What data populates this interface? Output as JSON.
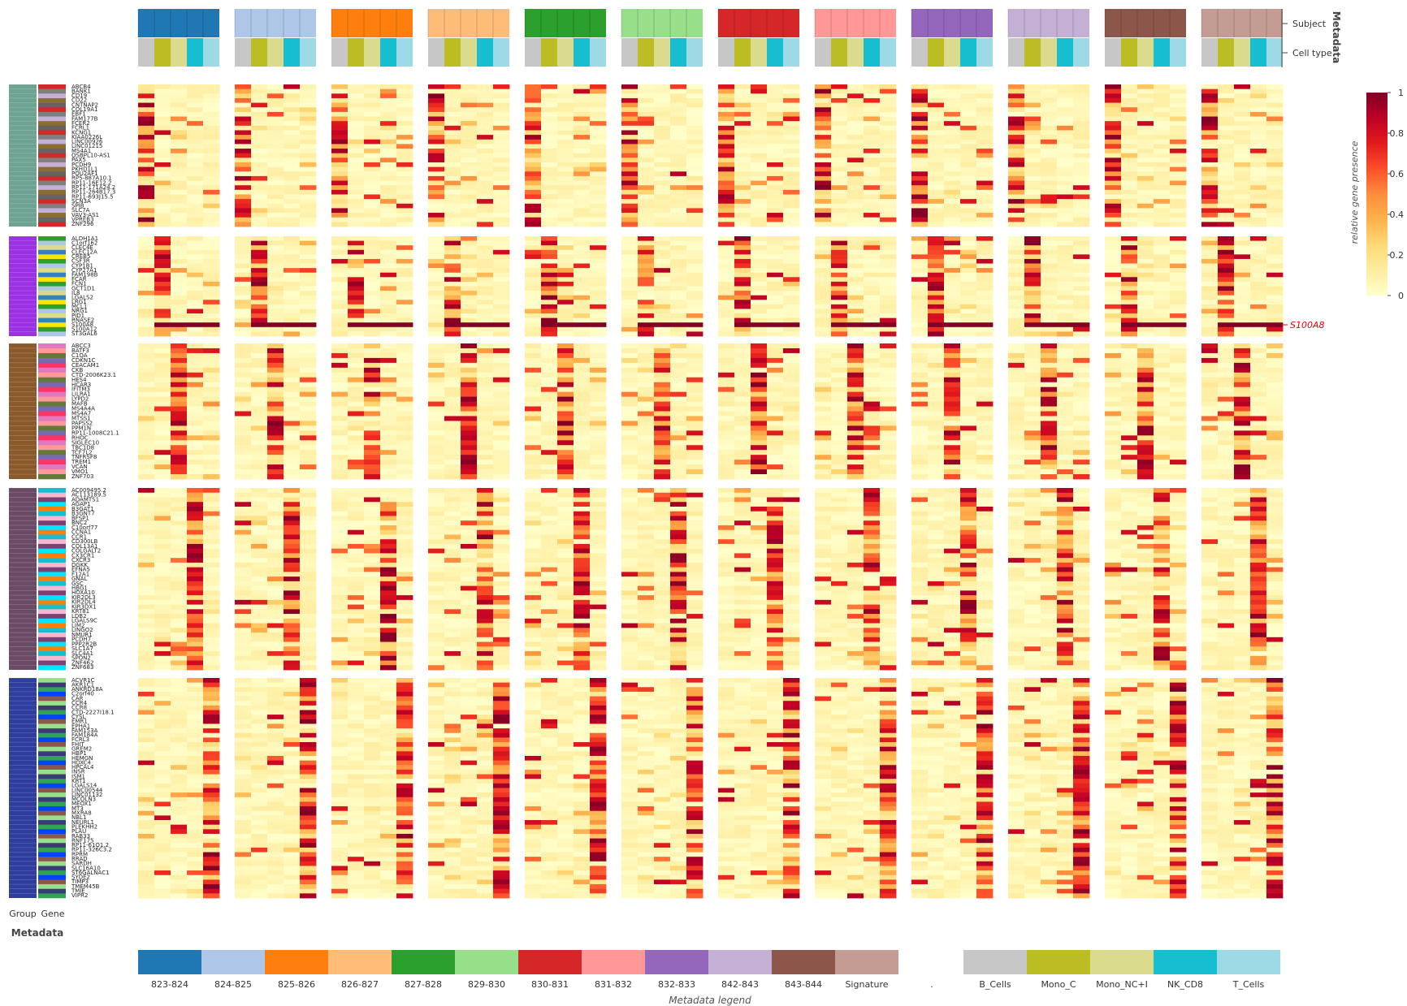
{
  "chart_data": {
    "type": "heatmap",
    "title": "",
    "colorbar": {
      "label": "relative gene presence",
      "ticks": [
        "0",
        "0.2",
        "0.4",
        "0.6",
        "0.8",
        "1"
      ],
      "range": [
        0,
        1
      ],
      "colors": [
        "#ffffcc",
        "#ffeda0",
        "#fed976",
        "#feb24c",
        "#fd8d3c",
        "#fc4e2a",
        "#e31a1c",
        "#bd0026",
        "#800026"
      ]
    },
    "metadata_title_top": "Metadata",
    "metadata_title_left": "Metadata",
    "column_track_labels": [
      "Subject",
      "Cell type"
    ],
    "row_track_labels": [
      "Group",
      "Gene"
    ],
    "legend_title": "Metadata legend",
    "subjects": [
      {
        "name": "823-824",
        "color": "#1f77b4"
      },
      {
        "name": "824-825",
        "color": "#aec7e8"
      },
      {
        "name": "825-826",
        "color": "#ff7f0e"
      },
      {
        "name": "826-827",
        "color": "#ffbb78"
      },
      {
        "name": "827-828",
        "color": "#2ca02c"
      },
      {
        "name": "829-830",
        "color": "#98df8a"
      },
      {
        "name": "830-831",
        "color": "#d62728"
      },
      {
        "name": "831-832",
        "color": "#ff9896"
      },
      {
        "name": "832-833",
        "color": "#9467bd"
      },
      {
        "name": "842-843",
        "color": "#c5b0d5"
      },
      {
        "name": "843-844",
        "color": "#8c564b"
      },
      {
        "name": "Signature",
        "color": "#c49c94"
      }
    ],
    "cell_types": [
      {
        "name": "B_Cells",
        "color": "#c7c7c7"
      },
      {
        "name": "Mono_C",
        "color": "#bcbd22"
      },
      {
        "name": "Mono_NC+I",
        "color": "#dbdb8d"
      },
      {
        "name": "NK_CD8",
        "color": "#17becf"
      },
      {
        "name": "T_Cells",
        "color": "#9edae5"
      }
    ],
    "legend_separator": ".",
    "highlight": {
      "gene": "S100A8",
      "color": "#e8000b",
      "group": 1
    },
    "groups": [
      {
        "color": "#6ea394",
        "active_col": 0,
        "genes": [
          "ABCB4",
          "BANK1",
          "CD19",
          "CD22",
          "CNTNAP2",
          "COL19A1",
          "EBF1",
          "FAM177B",
          "FCER2",
          "FCRL1",
          "KCNG1",
          "KIAA0226L",
          "LINC00926",
          "LINC01215",
          "MS4A1",
          "OSBPL10-AS1",
          "PAX5",
          "PCDH9",
          "PKHD1L1",
          "POU2AF1",
          "RP5-887A10.1",
          "RP11-16E12.2",
          "RP11-171A24.2",
          "RP11-264B17.3",
          "RP11-693J15.5",
          "SCN3A",
          "SPIB",
          "SLC7A",
          "VAV3-AS1",
          "VPREB3",
          "ZNF296"
        ]
      },
      {
        "color": "#9b30e5",
        "active_col": 1,
        "genes": [
          "ALDH1A1",
          "C1orf162",
          "CLEC4E",
          "CLEC12A",
          "CREB5",
          "CSF3R",
          "CYP1B1",
          "CYP27A1",
          "FAM198B",
          "FCAR",
          "FCN1",
          "GCT1D1",
          "IL8",
          "LGALS2",
          "LRG1",
          "MCL1",
          "NRG1",
          "PID1",
          "RNASE2",
          "S100A8",
          "S100A12",
          "ST3GAL6"
        ]
      },
      {
        "color": "#8b5a2b",
        "active_col": 2,
        "genes": [
          "ABCC3",
          "BATF3",
          "C1QA",
          "CDKN1C",
          "CEACAM1",
          "CKB",
          "CTD-2006K23.1",
          "HES4",
          "HCAR3",
          "IFITM3",
          "LILRA1",
          "LYPD2",
          "MAFB",
          "MS4A4A",
          "MS4A7",
          "MTSS1",
          "PAPSS2",
          "PPM1N",
          "RP11-1008C21.1",
          "RHOC",
          "SIGLEC10",
          "TBC1D8",
          "TCF7L2",
          "TNFRSF8",
          "TREM1",
          "VCAN",
          "VMO1",
          "ZNF703"
        ]
      },
      {
        "color": "#6b4a66",
        "active_col": 3,
        "genes": [
          "AC009495.2",
          "AC113189.5",
          "ADAMTS1",
          "AGAP1",
          "B3GAT1",
          "B3GNT7",
          "BFSP1",
          "BNC2",
          "C10orf77",
          "CCNA1",
          "CCR1",
          "CD300LB",
          "COL13A1",
          "COLGALT2",
          "CX3CR1",
          "CXCR3",
          "DGKK",
          "EFNA5",
          "F12A1",
          "GNAL",
          "GSC",
          "HBG1",
          "HOXA10",
          "KIR2DL3",
          "KIR2DL4",
          "KIR3DX1",
          "KRT81",
          "LDB2",
          "LGALS9C",
          "LIM2",
          "LINGO2",
          "NMUR1",
          "PCDH7",
          "PPP2R2B",
          "SLC1A7",
          "SLC4A1",
          "SPON2",
          "ZNF462",
          "ZNF683"
        ]
      },
      {
        "color": "#2e3d9e",
        "active_col": 4,
        "genes": [
          "ACVR1C",
          "AKR1C1",
          "ANKRD18A",
          "C2orf40",
          "CAR",
          "CCR4",
          "CCR8",
          "CTD-2227I18.1",
          "CYSL",
          "EMR1",
          "EPHA1",
          "FAM153A",
          "FAM184A",
          "FCRL3",
          "FHIT",
          "GREM2",
          "HBP1",
          "HEMGN",
          "HOXC4",
          "HPCAL4",
          "INSR",
          "ISM1",
          "KRT1",
          "LGALS14",
          "LINC00544",
          "LINC01132",
          "MCOLN3",
          "MEOX1",
          "MT3",
          "MXRA8",
          "NBL1",
          "NEURL1",
          "PLEKHH2",
          "PLAU",
          "RAB33",
          "RNF175",
          "RP11-61O1.2",
          "RP11-326C3.2",
          "RPRM",
          "RRAD",
          "SARDH",
          "SLC16A10",
          "ST6GALNAC1",
          "SYDE2",
          "TIMP3",
          "TMEM45B",
          "TMIE",
          "VIPR2"
        ]
      }
    ]
  }
}
